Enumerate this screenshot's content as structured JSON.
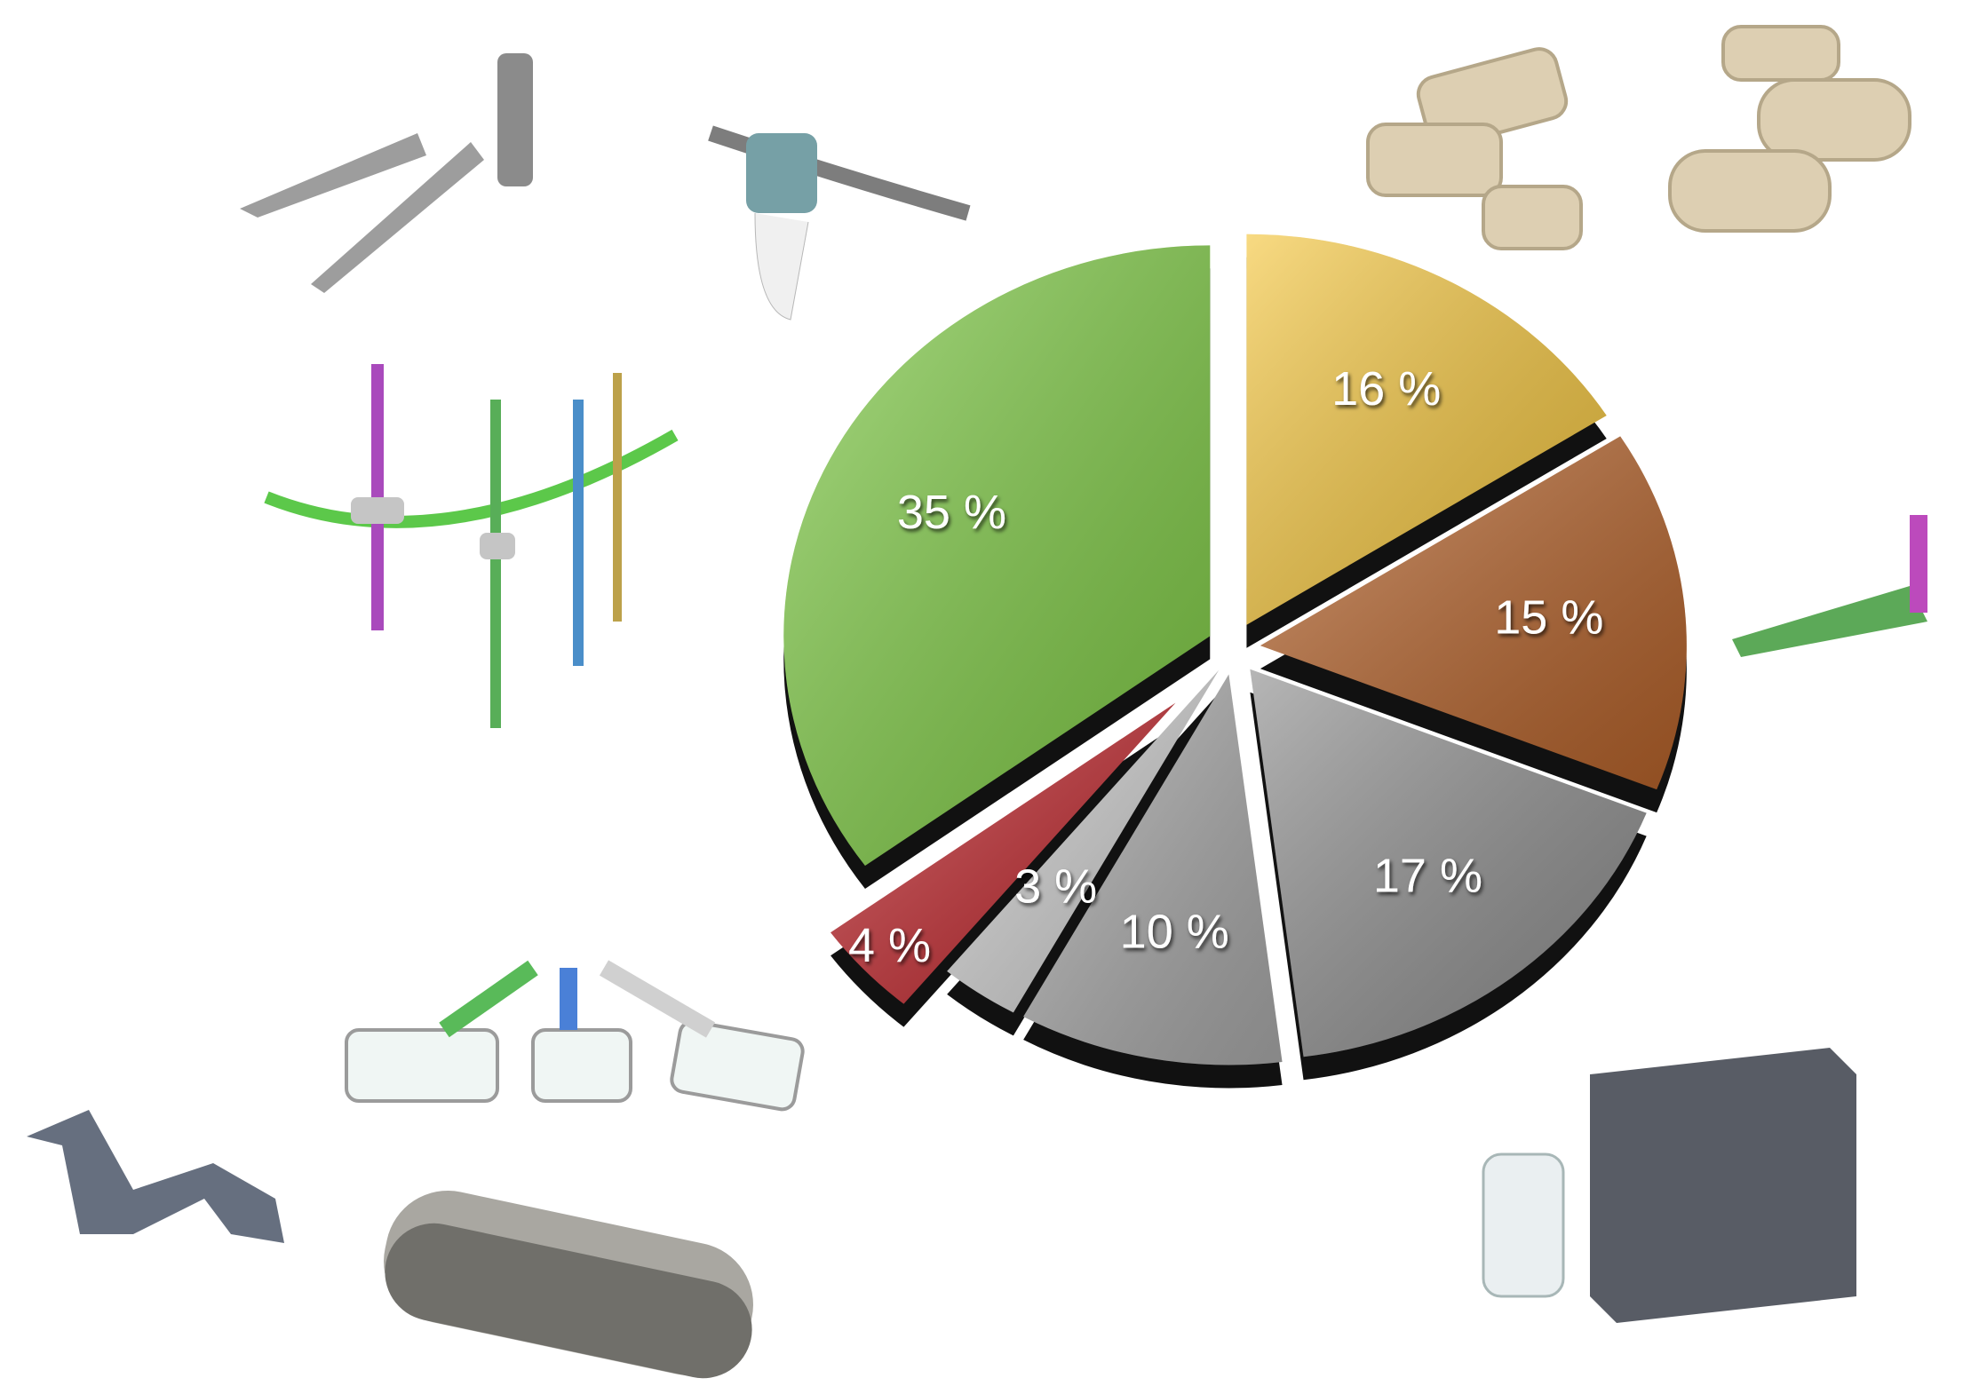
{
  "chart_data": {
    "type": "pie",
    "categories": [
      null,
      null,
      null,
      null,
      null,
      null,
      null
    ],
    "values": [
      16,
      15,
      17,
      10,
      3,
      4,
      35
    ],
    "value_labels": [
      "16 %",
      "15 %",
      "17 %",
      "10 %",
      "3 %",
      "4 %",
      "35 %"
    ],
    "colors": [
      "#f4c63f",
      "#b5622a",
      "#8f8f8f",
      "#a9a9a9",
      "#cfcfcf",
      "#c0262c",
      "#7fcb45"
    ]
  }
}
